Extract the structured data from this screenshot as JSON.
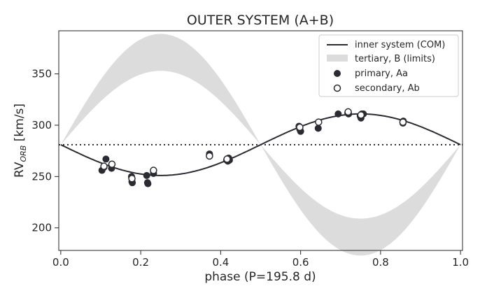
{
  "chart_data": {
    "type": "scatter",
    "title": "OUTER SYSTEM (A+B)",
    "xlabel": "phase (P=195.8 d)",
    "ylabel_main": "RV",
    "ylabel_sub": "ORB",
    "ylabel_unit": " [km/s]",
    "xlim": [
      -0.005,
      1.005
    ],
    "ylim": [
      178,
      392
    ],
    "x_ticks": [
      0.0,
      0.2,
      0.4,
      0.6,
      0.8,
      1.0
    ],
    "x_tick_labels": [
      "0.0",
      "0.2",
      "0.4",
      "0.6",
      "0.8",
      "1.0"
    ],
    "y_ticks": [
      200,
      250,
      300,
      350
    ],
    "y_tick_labels": [
      "200",
      "250",
      "300",
      "350"
    ],
    "grid": false,
    "legend_position": "top-right",
    "reference_line": 281,
    "model": {
      "gamma": 281,
      "semi_amplitude": 30,
      "phase_min": 0.25,
      "line_color": "#2b2b33",
      "band_color": "#dcdcdc",
      "tertiary_amp_low": 72,
      "tertiary_amp_high": 108
    },
    "series": [
      {
        "name": "inner system (COM)",
        "kind": "line",
        "color": "#2b2b33"
      },
      {
        "name": "tertiary, B (limits)",
        "kind": "band",
        "color": "#dcdcdc"
      },
      {
        "name": "primary, Aa",
        "kind": "filled",
        "color": "#2b2b33",
        "points": [
          [
            0.103,
            256
          ],
          [
            0.108,
            259
          ],
          [
            0.113,
            267
          ],
          [
            0.127,
            258
          ],
          [
            0.177,
            250
          ],
          [
            0.178,
            245
          ],
          [
            0.179,
            244
          ],
          [
            0.215,
            251
          ],
          [
            0.217,
            244
          ],
          [
            0.218,
            243
          ],
          [
            0.232,
            253
          ],
          [
            0.372,
            271
          ],
          [
            0.372,
            272
          ],
          [
            0.415,
            266
          ],
          [
            0.418,
            265
          ],
          [
            0.42,
            268
          ],
          [
            0.422,
            266
          ],
          [
            0.596,
            299
          ],
          [
            0.598,
            296
          ],
          [
            0.6,
            294
          ],
          [
            0.644,
            297
          ],
          [
            0.694,
            311
          ],
          [
            0.718,
            312
          ],
          [
            0.72,
            311
          ],
          [
            0.749,
            309
          ],
          [
            0.751,
            307
          ],
          [
            0.753,
            311
          ],
          [
            0.757,
            311
          ],
          [
            0.856,
            302
          ],
          [
            0.857,
            304
          ]
        ]
      },
      {
        "name": "secondary, Ab",
        "kind": "open",
        "color": "#2b2b33",
        "points": [
          [
            0.108,
            260
          ],
          [
            0.128,
            262
          ],
          [
            0.178,
            248
          ],
          [
            0.232,
            256
          ],
          [
            0.372,
            270
          ],
          [
            0.416,
            267
          ],
          [
            0.598,
            298
          ],
          [
            0.645,
            303
          ],
          [
            0.719,
            313
          ],
          [
            0.751,
            310
          ],
          [
            0.856,
            303
          ]
        ]
      }
    ]
  }
}
